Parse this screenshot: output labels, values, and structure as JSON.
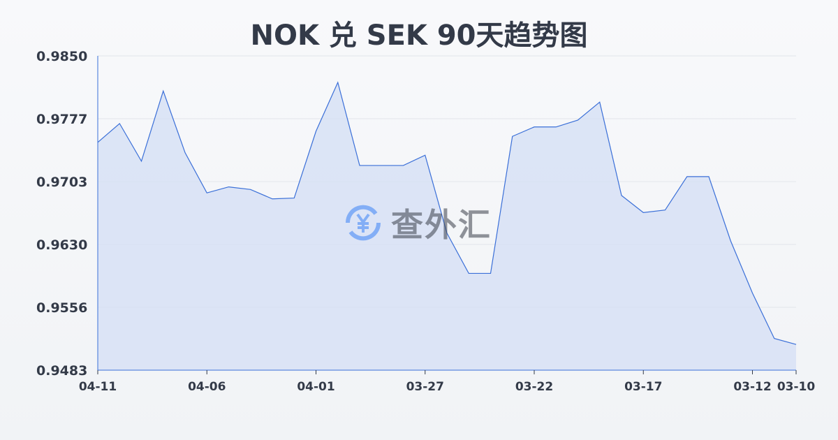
{
  "chart_data": {
    "type": "area",
    "title": "NOK 兑 SEK 90天趋势图",
    "xlabel": "",
    "ylabel": "",
    "ylim": [
      0.9483,
      0.985
    ],
    "yticks": [
      "0.9850",
      "0.9777",
      "0.9703",
      "0.9630",
      "0.9556",
      "0.9483"
    ],
    "xticks": [
      "04-11",
      "04-06",
      "04-01",
      "03-27",
      "03-22",
      "03-17",
      "03-12",
      "03-10"
    ],
    "xtick_index": [
      0,
      5,
      10,
      15,
      20,
      25,
      30,
      32
    ],
    "grid": true,
    "line_color": "#3a6fd8",
    "fill_color": "#d6e0f5",
    "values": [
      0.9749,
      0.9771,
      0.9727,
      0.9809,
      0.9737,
      0.969,
      0.9697,
      0.9694,
      0.9683,
      0.9684,
      0.9762,
      0.9819,
      0.9722,
      0.9722,
      0.9722,
      0.9734,
      0.9643,
      0.9596,
      0.9596,
      0.9756,
      0.9767,
      0.9767,
      0.9775,
      0.9796,
      0.9687,
      0.9667,
      0.967,
      0.9709,
      0.9709,
      0.9634,
      0.9573,
      0.952,
      0.9513
    ]
  },
  "watermark": {
    "text": "查外汇",
    "icon": "yen-exchange-icon"
  }
}
